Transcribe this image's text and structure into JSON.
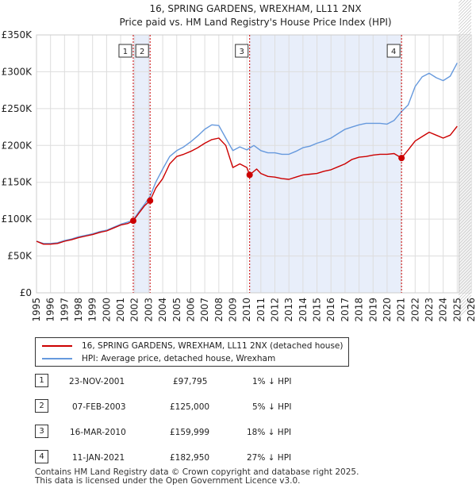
{
  "chart_data": {
    "type": "line",
    "title": "16, SPRING GARDENS, WREXHAM, LL11 2NX",
    "subtitle": "Price paid vs. HM Land Registry's House Price Index (HPI)",
    "xlim": [
      1995,
      2026
    ],
    "ylim": [
      0,
      350000
    ],
    "x_ticks": [
      "1995",
      "1996",
      "1997",
      "1998",
      "1999",
      "2000",
      "2001",
      "2002",
      "2003",
      "2004",
      "2005",
      "2006",
      "2007",
      "2008",
      "2009",
      "2010",
      "2011",
      "2012",
      "2013",
      "2014",
      "2015",
      "2016",
      "2017",
      "2018",
      "2019",
      "2020",
      "2021",
      "2022",
      "2023",
      "2024",
      "2025",
      "2026"
    ],
    "y_ticks": [
      {
        "value": 0,
        "label": "£0"
      },
      {
        "value": 50000,
        "label": "£50K"
      },
      {
        "value": 100000,
        "label": "£100K"
      },
      {
        "value": 150000,
        "label": "£150K"
      },
      {
        "value": 200000,
        "label": "£200K"
      },
      {
        "value": 250000,
        "label": "£250K"
      },
      {
        "value": 300000,
        "label": "£300K"
      },
      {
        "value": 350000,
        "label": "£350K"
      }
    ],
    "grid": true,
    "shaded_ranges": [
      [
        2001.9,
        2003.1
      ],
      [
        2010.2,
        2021.03
      ]
    ],
    "projection_start": 2025.1,
    "series": [
      {
        "name": "16, SPRING GARDENS, WREXHAM, LL11 2NX (detached house)",
        "color": "#cc0000",
        "points": [
          [
            1995.0,
            70000
          ],
          [
            1995.5,
            66000
          ],
          [
            1996.0,
            66000
          ],
          [
            1996.5,
            67000
          ],
          [
            1997.0,
            70000
          ],
          [
            1997.5,
            72000
          ],
          [
            1998.0,
            75000
          ],
          [
            1998.5,
            77000
          ],
          [
            1999.0,
            79000
          ],
          [
            1999.5,
            82000
          ],
          [
            2000.0,
            84000
          ],
          [
            2000.5,
            88000
          ],
          [
            2001.0,
            92000
          ],
          [
            2001.5,
            94000
          ],
          [
            2001.9,
            97795
          ],
          [
            2002.3,
            108000
          ],
          [
            2002.7,
            118000
          ],
          [
            2003.1,
            125000
          ],
          [
            2003.5,
            142000
          ],
          [
            2004.0,
            155000
          ],
          [
            2004.5,
            175000
          ],
          [
            2005.0,
            185000
          ],
          [
            2005.5,
            188000
          ],
          [
            2006.0,
            192000
          ],
          [
            2006.5,
            197000
          ],
          [
            2007.0,
            203000
          ],
          [
            2007.5,
            208000
          ],
          [
            2008.0,
            210000
          ],
          [
            2008.5,
            200000
          ],
          [
            2009.0,
            170000
          ],
          [
            2009.5,
            175000
          ],
          [
            2010.0,
            170000
          ],
          [
            2010.2,
            159999
          ],
          [
            2010.7,
            168000
          ],
          [
            2011.0,
            162000
          ],
          [
            2011.5,
            158000
          ],
          [
            2012.0,
            157000
          ],
          [
            2012.5,
            155000
          ],
          [
            2013.0,
            154000
          ],
          [
            2013.5,
            157000
          ],
          [
            2014.0,
            160000
          ],
          [
            2014.5,
            161000
          ],
          [
            2015.0,
            162000
          ],
          [
            2015.5,
            165000
          ],
          [
            2016.0,
            167000
          ],
          [
            2016.5,
            171000
          ],
          [
            2017.0,
            175000
          ],
          [
            2017.5,
            181000
          ],
          [
            2018.0,
            184000
          ],
          [
            2018.5,
            185000
          ],
          [
            2019.0,
            187000
          ],
          [
            2019.5,
            188000
          ],
          [
            2020.0,
            188000
          ],
          [
            2020.5,
            189000
          ],
          [
            2021.03,
            182950
          ],
          [
            2021.5,
            194000
          ],
          [
            2022.0,
            206000
          ],
          [
            2022.5,
            212000
          ],
          [
            2023.0,
            218000
          ],
          [
            2023.5,
            214000
          ],
          [
            2024.0,
            210000
          ],
          [
            2024.5,
            214000
          ],
          [
            2025.0,
            226000
          ]
        ]
      },
      {
        "name": "HPI: Average price, detached house, Wrexham",
        "color": "#6699dd",
        "points": [
          [
            1995.0,
            70000
          ],
          [
            1995.5,
            67000
          ],
          [
            1996.0,
            67000
          ],
          [
            1996.5,
            68000
          ],
          [
            1997.0,
            71000
          ],
          [
            1997.5,
            73000
          ],
          [
            1998.0,
            76000
          ],
          [
            1998.5,
            78000
          ],
          [
            1999.0,
            80000
          ],
          [
            1999.5,
            83000
          ],
          [
            2000.0,
            85000
          ],
          [
            2000.5,
            89000
          ],
          [
            2001.0,
            93000
          ],
          [
            2001.5,
            96000
          ],
          [
            2001.9,
            99000
          ],
          [
            2002.3,
            110000
          ],
          [
            2002.7,
            120000
          ],
          [
            2003.1,
            131000
          ],
          [
            2003.5,
            150000
          ],
          [
            2004.0,
            168000
          ],
          [
            2004.5,
            185000
          ],
          [
            2005.0,
            193000
          ],
          [
            2005.5,
            198000
          ],
          [
            2006.0,
            205000
          ],
          [
            2006.5,
            213000
          ],
          [
            2007.0,
            222000
          ],
          [
            2007.5,
            228000
          ],
          [
            2008.0,
            227000
          ],
          [
            2008.5,
            210000
          ],
          [
            2009.0,
            193000
          ],
          [
            2009.5,
            198000
          ],
          [
            2010.0,
            194000
          ],
          [
            2010.5,
            200000
          ],
          [
            2011.0,
            193000
          ],
          [
            2011.5,
            190000
          ],
          [
            2012.0,
            190000
          ],
          [
            2012.5,
            188000
          ],
          [
            2013.0,
            188000
          ],
          [
            2013.5,
            192000
          ],
          [
            2014.0,
            197000
          ],
          [
            2014.5,
            199000
          ],
          [
            2015.0,
            203000
          ],
          [
            2015.5,
            206000
          ],
          [
            2016.0,
            210000
          ],
          [
            2016.5,
            216000
          ],
          [
            2017.0,
            222000
          ],
          [
            2017.5,
            225000
          ],
          [
            2018.0,
            228000
          ],
          [
            2018.5,
            230000
          ],
          [
            2019.0,
            230000
          ],
          [
            2019.5,
            230000
          ],
          [
            2020.0,
            229000
          ],
          [
            2020.5,
            234000
          ],
          [
            2021.03,
            246000
          ],
          [
            2021.5,
            255000
          ],
          [
            2022.0,
            280000
          ],
          [
            2022.5,
            293000
          ],
          [
            2023.0,
            298000
          ],
          [
            2023.5,
            292000
          ],
          [
            2024.0,
            288000
          ],
          [
            2024.5,
            294000
          ],
          [
            2025.0,
            312000
          ]
        ]
      }
    ],
    "markers": [
      {
        "label": "1",
        "x": 2001.9,
        "value": 97795
      },
      {
        "label": "2",
        "x": 2003.1,
        "value": 125000
      },
      {
        "label": "3",
        "x": 2010.2,
        "value": 159999
      },
      {
        "label": "4",
        "x": 2021.03,
        "value": 182950
      }
    ]
  },
  "legend": {
    "property_label": "16, SPRING GARDENS, WREXHAM, LL11 2NX (detached house)",
    "hpi_label": "HPI: Average price, detached house, Wrexham"
  },
  "sales": [
    {
      "num": "1",
      "date": "23-NOV-2001",
      "price": "£97,795",
      "hpi": "1% ↓ HPI"
    },
    {
      "num": "2",
      "date": "07-FEB-2003",
      "price": "£125,000",
      "hpi": "5% ↓ HPI"
    },
    {
      "num": "3",
      "date": "16-MAR-2010",
      "price": "£159,999",
      "hpi": "18% ↓ HPI"
    },
    {
      "num": "4",
      "date": "11-JAN-2021",
      "price": "£182,950",
      "hpi": "27% ↓ HPI"
    }
  ],
  "footer": {
    "line1": "Contains HM Land Registry data © Crown copyright and database right 2025.",
    "line2": "This data is licensed under the Open Government Licence v3.0."
  },
  "colors": {
    "property": "#cc0000",
    "hpi": "#6699dd",
    "shade": "#e8eefa",
    "grid": "#dddddd",
    "marker_line": "#cc0000"
  }
}
